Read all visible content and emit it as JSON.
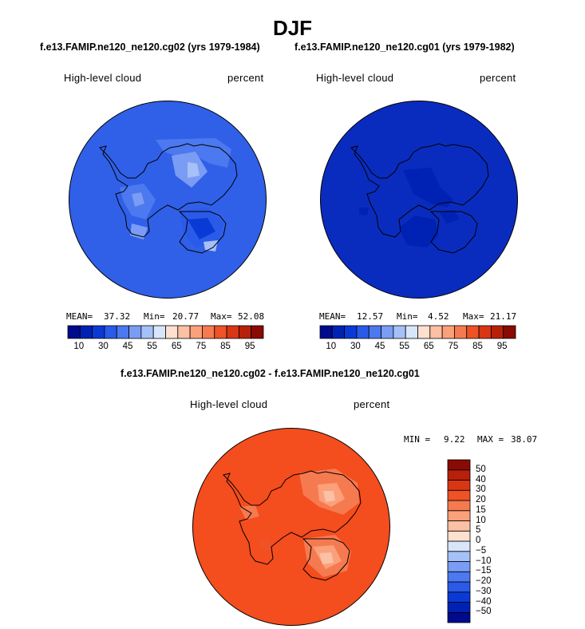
{
  "title": "DJF",
  "panels": {
    "left": {
      "header": "f.e13.FAMIP.ne120_ne120.cg02 (yrs 1979-1984)",
      "variable": "High-level cloud",
      "units": "percent",
      "mean_label": "MEAN=",
      "mean": "37.32",
      "min_label": "Min=",
      "min": "20.77",
      "max_label": "Max=",
      "max": "52.08",
      "base_color": "#3060e8"
    },
    "right": {
      "header": "f.e13.FAMIP.ne120_ne120.cg01 (yrs 1979-1982)",
      "variable": "High-level cloud",
      "units": "percent",
      "mean_label": "MEAN=",
      "mean": "12.57",
      "min_label": "Min=",
      "min": "4.52",
      "max_label": "Max=",
      "max": "21.17",
      "base_color": "#0a2cbe"
    },
    "diff": {
      "header": "f.e13.FAMIP.ne120_ne120.cg02 - f.e13.FAMIP.ne120_ne120.cg01",
      "variable": "High-level cloud",
      "units": "percent",
      "min_label": "MIN =",
      "min": "9.22",
      "max_label": "MAX =",
      "max": "38.07",
      "base_color": "#f44d1e"
    }
  },
  "colorbars": {
    "horizontal": {
      "colors": [
        "#000a8c",
        "#0022b4",
        "#0a3ad6",
        "#2a5ae8",
        "#4c78f0",
        "#7a9cf4",
        "#a6c0f8",
        "#d8e6fc",
        "#fde0d0",
        "#fcc0a4",
        "#faa07a",
        "#f67a50",
        "#ee5226",
        "#d83614",
        "#b8200a",
        "#8a0a04"
      ],
      "tick_labels": [
        "10",
        "30",
        "45",
        "55",
        "65",
        "75",
        "85",
        "95"
      ]
    },
    "vertical": {
      "colors": [
        "#000a8c",
        "#0022b4",
        "#0a3ad6",
        "#2a5ae8",
        "#4c78f0",
        "#7a9cf4",
        "#a6c0f8",
        "#d8e6fc",
        "#fde0d0",
        "#fcc0a4",
        "#faa07a",
        "#f67a50",
        "#ee5226",
        "#d83614",
        "#b8200a",
        "#8a0a04"
      ],
      "tick_labels": [
        "50",
        "40",
        "30",
        "20",
        "15",
        "10",
        "5",
        "0",
        "−5",
        "−10",
        "−15",
        "−20",
        "−30",
        "−40",
        "−50"
      ]
    }
  },
  "chart_data": {
    "type": "heatmap",
    "projection": "south polar stereographic",
    "season": "DJF",
    "variable": "High-level cloud",
    "units": "percent",
    "maps": [
      {
        "name": "f.e13.FAMIP.ne120_ne120.cg02 (yrs 1979-1984)",
        "mean": 37.32,
        "min": 20.77,
        "max": 52.08
      },
      {
        "name": "f.e13.FAMIP.ne120_ne120.cg01 (yrs 1979-1982)",
        "mean": 12.57,
        "min": 4.52,
        "max": 21.17
      },
      {
        "name": "f.e13.FAMIP.ne120_ne120.cg02 - f.e13.FAMIP.ne120_ne120.cg01",
        "min": 9.22,
        "max": 38.07
      }
    ],
    "abs_levels": [
      10,
      30,
      45,
      55,
      65,
      75,
      85,
      95
    ],
    "diff_levels": [
      -50,
      -40,
      -30,
      -20,
      -15,
      -10,
      -5,
      0,
      5,
      10,
      15,
      20,
      30,
      40,
      50
    ]
  }
}
